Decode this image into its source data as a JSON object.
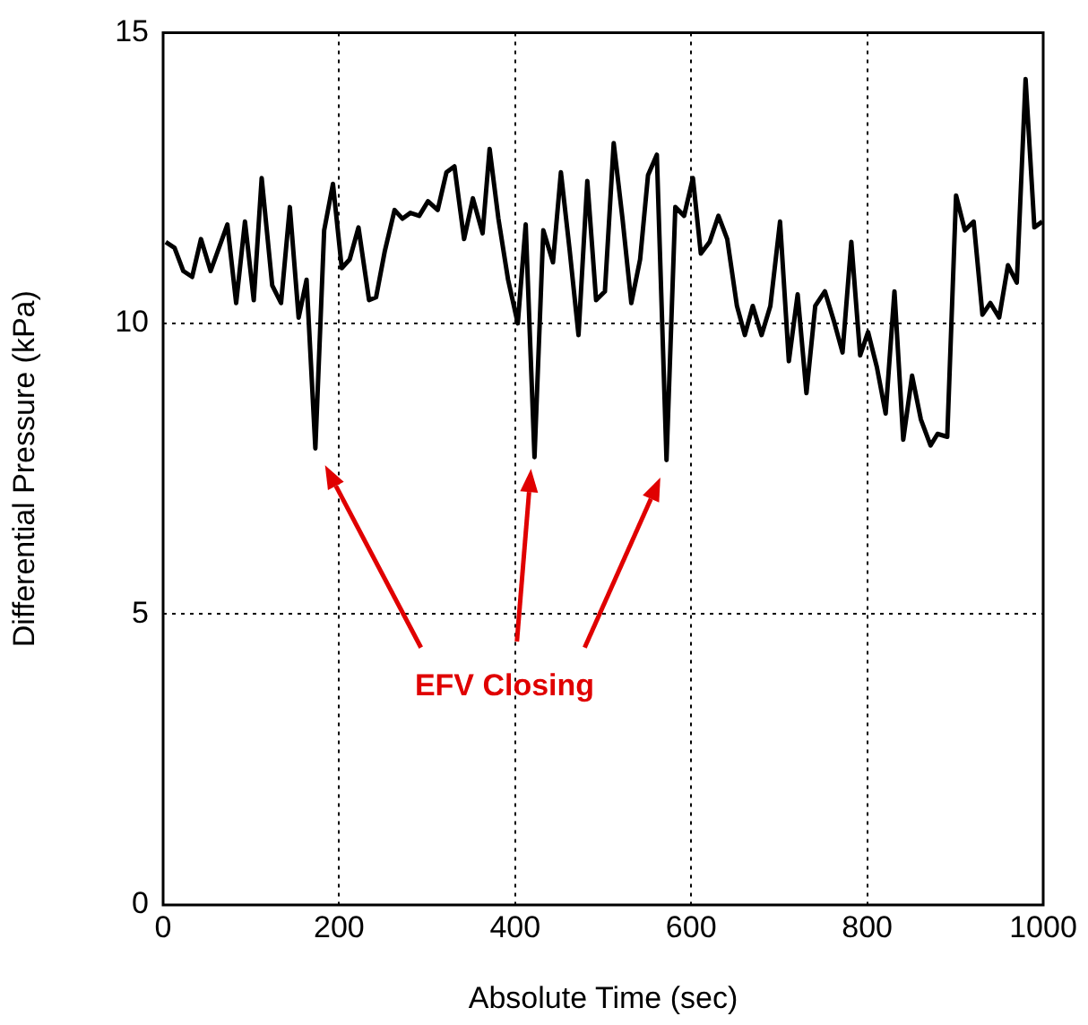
{
  "chart_data": {
    "type": "line",
    "xlabel": "Absolute Time (sec)",
    "ylabel": "Differential Pressure (kPa)",
    "xlim": [
      0,
      1000
    ],
    "xticks": [
      0,
      200,
      400,
      600,
      800,
      1000
    ],
    "ylim": [
      0,
      15
    ],
    "yticks": [
      0,
      5,
      10,
      15
    ],
    "grid": true,
    "marker": "none",
    "line_style": "solid",
    "annotations": [
      "EFV Closing"
    ],
    "series": [
      {
        "color": "#000000",
        "x": [
          3,
          13,
          23,
          33,
          43,
          54,
          73,
          83,
          93,
          103,
          112,
          124,
          134,
          144,
          154,
          163,
          173,
          183,
          193,
          203,
          212,
          222,
          234,
          242,
          252,
          263,
          272,
          281,
          291,
          301,
          312,
          322,
          331,
          342,
          352,
          363,
          371,
          381,
          392,
          403,
          412,
          422,
          432,
          443,
          452,
          462,
          472,
          482,
          492,
          502,
          512,
          522,
          532,
          542,
          551,
          561,
          572,
          582,
          592,
          602,
          611,
          621,
          631,
          641,
          652,
          661,
          670,
          680,
          690,
          701,
          711,
          721,
          731,
          741,
          752,
          762,
          772,
          782,
          792,
          801,
          811,
          821,
          831,
          841,
          851,
          861,
          872,
          880,
          891,
          901,
          911,
          921,
          931,
          940,
          950,
          960,
          970,
          980,
          990,
          999
        ],
        "values": [
          11.4,
          11.3,
          10.9,
          10.8,
          11.45,
          10.9,
          11.7,
          10.35,
          11.75,
          10.4,
          12.5,
          10.65,
          10.35,
          12.0,
          10.1,
          10.75,
          7.85,
          11.6,
          12.4,
          10.95,
          11.1,
          11.65,
          10.4,
          10.45,
          11.25,
          11.95,
          11.8,
          11.9,
          11.85,
          12.1,
          11.95,
          12.6,
          12.7,
          11.45,
          12.15,
          11.55,
          13.0,
          11.8,
          10.75,
          10.0,
          11.7,
          7.7,
          11.6,
          11.05,
          12.6,
          11.25,
          9.8,
          12.45,
          10.4,
          10.55,
          13.1,
          11.8,
          10.35,
          11.1,
          12.55,
          12.9,
          7.65,
          12.0,
          11.85,
          12.5,
          11.2,
          11.4,
          11.85,
          11.45,
          10.3,
          9.8,
          10.3,
          9.8,
          10.3,
          11.75,
          9.35,
          10.5,
          8.8,
          10.3,
          10.55,
          10.05,
          9.5,
          11.4,
          9.45,
          9.85,
          9.25,
          8.45,
          10.55,
          8.0,
          9.1,
          8.35,
          7.9,
          8.1,
          8.05,
          12.2,
          11.6,
          11.75,
          10.15,
          10.35,
          10.1,
          11.0,
          10.7,
          14.2,
          11.65,
          11.75
        ]
      }
    ]
  }
}
